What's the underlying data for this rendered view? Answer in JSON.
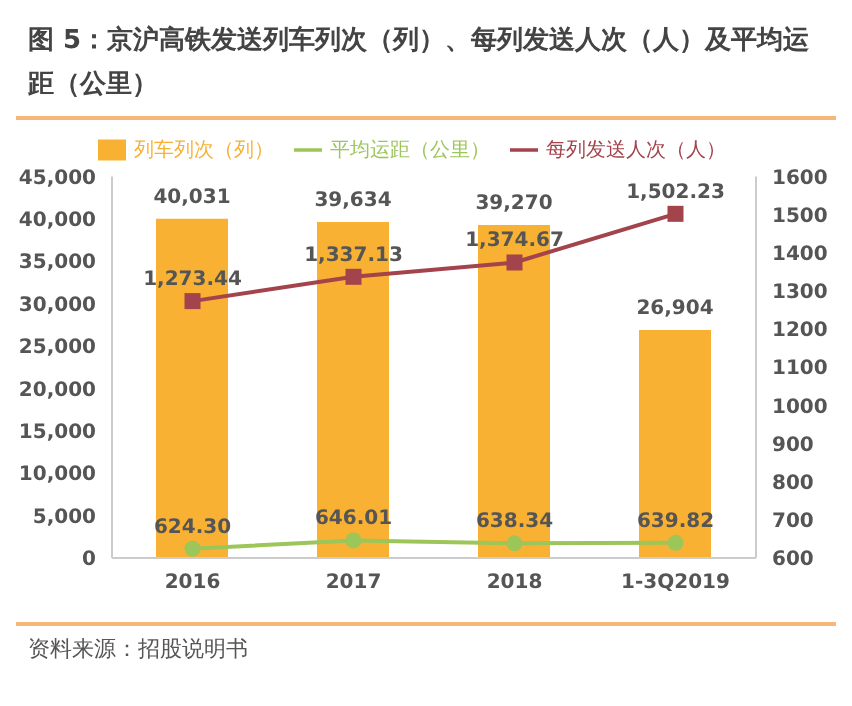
{
  "chart_data": {
    "type": "bar",
    "title": "图 5：京沪高铁发送列车列次（列）、每列发送人次（人）及平均运距（公里）",
    "categories": [
      "2016",
      "2017",
      "2018",
      "1-3Q2019"
    ],
    "series": [
      {
        "name": "列车列次（列）",
        "color": "#f8b133",
        "values": [
          40031,
          39634,
          39270,
          26904
        ],
        "value_labels": [
          "40,031",
          "39,634",
          "39,270",
          "26,904"
        ]
      },
      {
        "name": "每列发送人次（人）",
        "type": "line",
        "axis": "y2",
        "color": "#a3434c",
        "marker": "square",
        "values": [
          1273.44,
          1337.13,
          1374.67,
          1502.23
        ],
        "value_labels": [
          "1,273.44",
          "1,337.13",
          "1,374.67",
          "1,502.23"
        ]
      },
      {
        "name": "平均运距（公里）",
        "type": "line",
        "axis": "y2",
        "color": "#9cc55a",
        "marker": "circle",
        "values": [
          624.3,
          646.01,
          638.34,
          639.82
        ],
        "value_labels": [
          "624.30",
          "646.01",
          "638.34",
          "639.82"
        ]
      }
    ],
    "ylim": [
      0,
      45000
    ],
    "yticks": [
      0,
      {
        "value": 5000,
        "label": "5,000"
      },
      {
        "value": 10000,
        "label": "10,000"
      },
      {
        "value": 15000,
        "label": "15,000"
      },
      {
        "value": 20000,
        "label": "20,000"
      },
      {
        "value": 25000,
        "label": "25,000"
      },
      {
        "value": 30000,
        "label": "30,000"
      },
      {
        "value": 35000,
        "label": "35,000"
      },
      {
        "value": 40000,
        "label": "40,000"
      },
      {
        "value": 45000,
        "label": "45,000"
      }
    ],
    "y2lim": [
      600,
      1600
    ],
    "y2ticks": [
      600,
      700,
      800,
      900,
      1000,
      1100,
      1200,
      1300,
      1400,
      1500,
      1600
    ],
    "legend": "top",
    "grid": false,
    "annotations": [
      "资料来源：招股说明书"
    ]
  }
}
